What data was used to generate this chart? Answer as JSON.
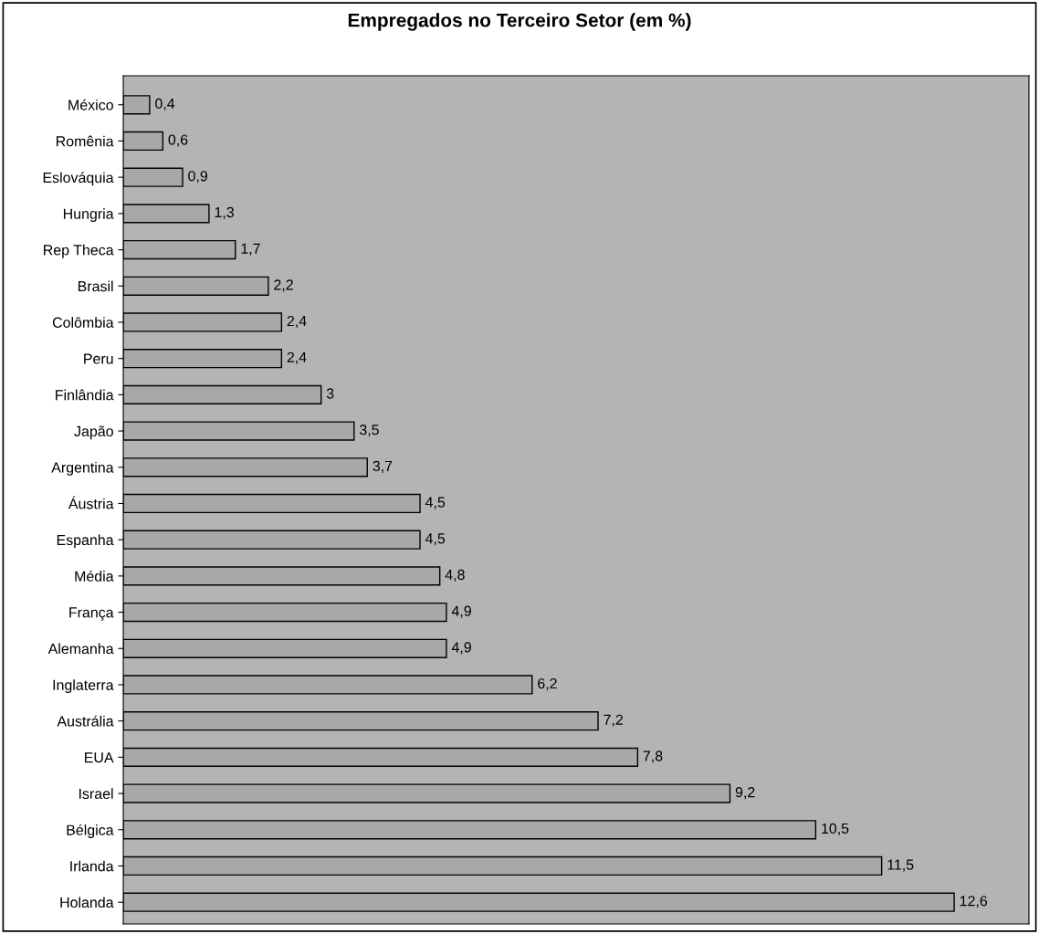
{
  "chart_data": {
    "type": "bar",
    "orientation": "horizontal",
    "title": "Empregados no Terceiro Setor (em %)",
    "categories": [
      "México",
      "Romênia",
      "Eslováquia",
      "Hungria",
      "Rep Theca",
      "Brasil",
      "Colômbia",
      "Peru",
      "Finlândia",
      "Japão",
      "Argentina",
      "Áustria",
      "Espanha",
      "Média",
      "França",
      "Alemanha",
      "Inglaterra",
      "Austrália",
      "EUA",
      "Israel",
      "Bélgica",
      "Irlanda",
      "Holanda"
    ],
    "values": [
      0.4,
      0.6,
      0.9,
      1.3,
      1.7,
      2.2,
      2.4,
      2.4,
      3,
      3.5,
      3.7,
      4.5,
      4.5,
      4.8,
      4.9,
      4.9,
      6.2,
      7.2,
      7.8,
      9.2,
      10.5,
      11.5,
      12.6
    ],
    "value_labels": [
      "0,4",
      "0,6",
      "0,9",
      "1,3",
      "1,7",
      "2,2",
      "2,4",
      "2,4",
      "3",
      "3,5",
      "3,7",
      "4,5",
      "4,5",
      "4,8",
      "4,9",
      "4,9",
      "6,2",
      "7,2",
      "7,8",
      "9,2",
      "10,5",
      "11,5",
      "12,6"
    ],
    "color": "#a8a8a8",
    "grid": false,
    "legend": false
  }
}
